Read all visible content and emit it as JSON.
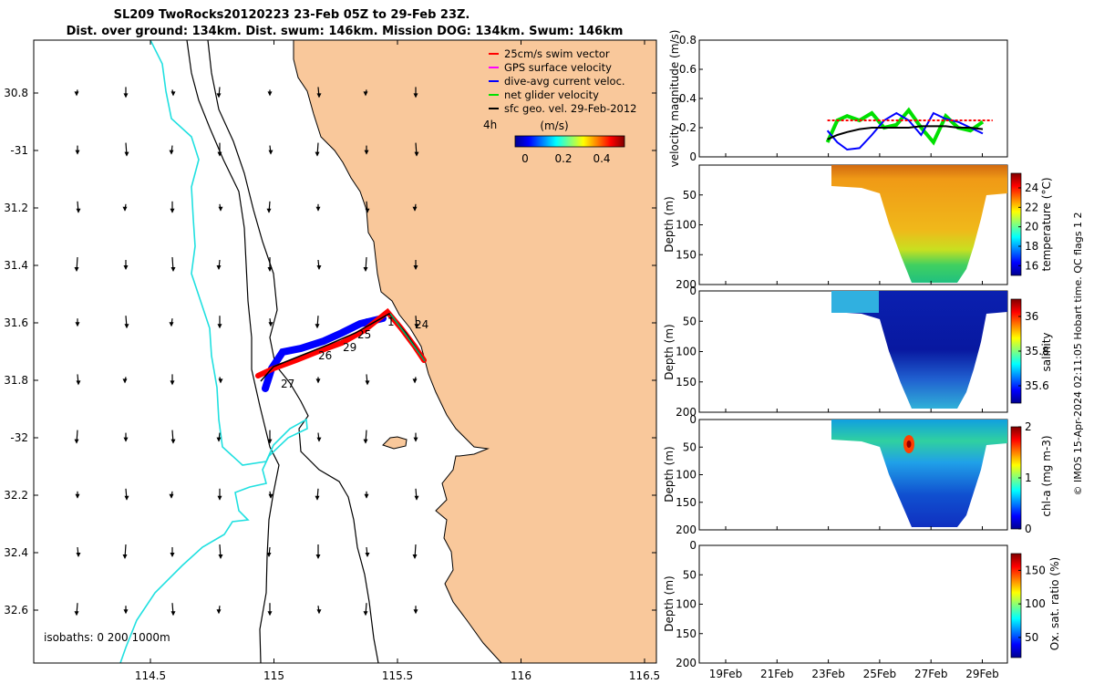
{
  "title": {
    "line1": "SL209 TwoRocks20120223 23-Feb 05Z to 29-Feb 23Z.",
    "line2": "Dist. over ground: 134km. Dist. swum: 146km. Mission DOG: 134km. Swum: 146km"
  },
  "map": {
    "lon_ticks": [
      "114.5",
      "115",
      "115.5",
      "116",
      "116.5"
    ],
    "lat_ticks": [
      "30.8",
      "-31",
      "31.2",
      "31.4",
      "31.6",
      "31.8",
      "-32",
      "32.2",
      "32.4",
      "32.6"
    ],
    "legend": [
      {
        "label": "25cm/s swim vector",
        "color": "#ff0000"
      },
      {
        "label": "GPS surface velocity",
        "color": "#ff00ff"
      },
      {
        "label": "dive-avg current veloc.",
        "color": "#0000ff"
      },
      {
        "label": "net glider velocity",
        "color": "#00e000"
      },
      {
        "label": "sfc geo. vel. 29-Feb-2012",
        "color": "#000000"
      }
    ],
    "four_h_label": "4h",
    "colorbar_unit": "(m/s)",
    "colorbar_ticks": [
      "0",
      "0.2",
      "0.4"
    ],
    "day_labels": [
      "1",
      "24",
      "25",
      "26",
      "29",
      "27"
    ],
    "isobath_note": "isobaths: 0   200  1000m",
    "colors": {
      "land": "#f9c89b",
      "shelf": "#000000",
      "deep": "#20e0e0",
      "track": "#ff0000",
      "track_blue": "#0000ff"
    }
  },
  "chart_data": [
    {
      "type": "line",
      "title": "",
      "ylabel": "velocity magnitude (m/s)",
      "ylim": [
        0,
        0.8
      ],
      "yticks": [
        "0",
        "0.2",
        "0.4",
        "0.6",
        "0.8"
      ],
      "x_date_start": "23-Feb",
      "series": [
        {
          "name": "net glider velocity",
          "color": "#00e000",
          "x": [
            23.2,
            23.6,
            24.0,
            24.5,
            25.0,
            25.5,
            26.0,
            26.5,
            27.0,
            27.5,
            28.0,
            28.5,
            29.0,
            29.5
          ],
          "y": [
            0.1,
            0.25,
            0.28,
            0.25,
            0.3,
            0.2,
            0.22,
            0.32,
            0.2,
            0.1,
            0.28,
            0.2,
            0.18,
            0.24
          ]
        },
        {
          "name": "dive-avg current veloc.",
          "color": "#0000ff",
          "x": [
            23.2,
            23.6,
            24.0,
            24.5,
            25.0,
            25.5,
            26.0,
            26.5,
            27.0,
            27.5,
            28.0,
            28.5,
            29.0,
            29.5
          ],
          "y": [
            0.18,
            0.1,
            0.05,
            0.06,
            0.15,
            0.25,
            0.3,
            0.25,
            0.15,
            0.3,
            0.26,
            0.24,
            0.2,
            0.16
          ]
        },
        {
          "name": "sfc geo. vel.",
          "color": "#000000",
          "x": [
            23.2,
            23.6,
            24.0,
            24.5,
            25.0,
            25.5,
            26.0,
            26.5,
            27.0,
            27.5,
            28.0,
            28.5,
            29.0,
            29.5
          ],
          "y": [
            0.12,
            0.15,
            0.17,
            0.19,
            0.2,
            0.2,
            0.2,
            0.2,
            0.21,
            0.21,
            0.21,
            0.2,
            0.2,
            0.19
          ]
        },
        {
          "name": "25cm/s swim vector",
          "color": "#ff0000",
          "x": [
            23.2,
            29.9
          ],
          "y": [
            0.25,
            0.25
          ]
        }
      ]
    },
    {
      "type": "heatmap",
      "ylabel": "Depth (m)",
      "yticks": [
        "50",
        "100",
        "150",
        "200"
      ],
      "ylim": [
        200,
        0
      ],
      "colorbar_label": "temperature (°C)",
      "colorbar_ticks": [
        "16",
        "18",
        "20",
        "22",
        "24"
      ],
      "colorbar_range": [
        15,
        25.5
      ]
    },
    {
      "type": "heatmap",
      "ylabel": "Depth (m)",
      "yticks": [
        "0",
        "50",
        "100",
        "150",
        "200"
      ],
      "ylim": [
        200,
        0
      ],
      "colorbar_label": "salinity",
      "colorbar_ticks": [
        "35.6",
        "35.8",
        "36"
      ],
      "colorbar_range": [
        35.5,
        36.1
      ]
    },
    {
      "type": "heatmap",
      "ylabel": "Depth (m)",
      "yticks": [
        "0",
        "50",
        "100",
        "150",
        "200"
      ],
      "ylim": [
        200,
        0
      ],
      "colorbar_label": "chl-a (mg m-3)",
      "colorbar_ticks": [
        "0",
        "1",
        "2"
      ],
      "colorbar_range": [
        0,
        2
      ]
    },
    {
      "type": "heatmap",
      "ylabel": "Depth (m)",
      "yticks": [
        "0",
        "50",
        "100",
        "150",
        "200"
      ],
      "ylim": [
        200,
        0
      ],
      "colorbar_label": "Ox. sat. ratio (%)",
      "colorbar_ticks": [
        "50",
        "100",
        "150"
      ],
      "colorbar_range": [
        20,
        175
      ]
    }
  ],
  "time_axis": {
    "ticks": [
      "19Feb",
      "21Feb",
      "23Feb",
      "25Feb",
      "27Feb",
      "29Feb"
    ]
  },
  "credit": "© IMOS 15-Apr-2024 02:11:05 Hobart time. QC flags 1  2"
}
